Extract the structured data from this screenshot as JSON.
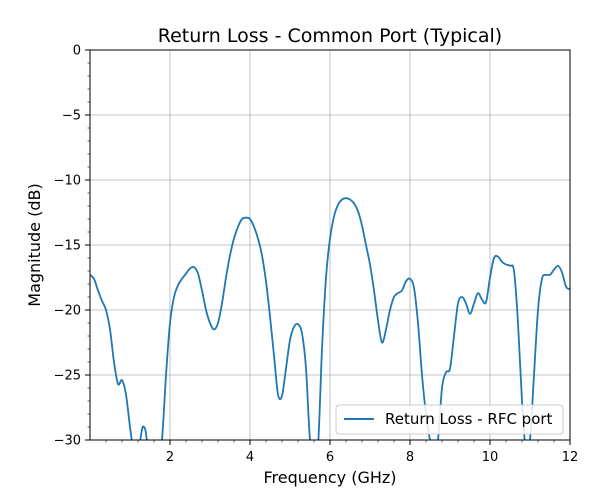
{
  "chart_data": {
    "type": "line",
    "title": "Return Loss - Common Port (Typical)",
    "xlabel": "Frequency (GHz)",
    "ylabel": "Magnitude (dB)",
    "xlim": [
      0,
      12
    ],
    "ylim": [
      -30,
      0
    ],
    "xticks": [
      2,
      4,
      6,
      8,
      10,
      12
    ],
    "yticks": [
      0,
      -5,
      -10,
      -15,
      -20,
      -25,
      -30
    ],
    "xtick_labels": [
      "2",
      "4",
      "6",
      "8",
      "10",
      "12"
    ],
    "ytick_labels": [
      "0",
      "−5",
      "−10",
      "−15",
      "−20",
      "−25",
      "−30"
    ],
    "grid": true,
    "legend_position": "bottom-right",
    "color": "#1f77b4",
    "series": [
      {
        "name": "Return Loss - RFC port",
        "x": [
          0.0,
          0.1,
          0.2,
          0.3,
          0.4,
          0.5,
          0.6,
          0.7,
          0.8,
          0.9,
          1.0,
          1.1,
          1.2,
          1.3,
          1.35,
          1.4,
          1.5,
          1.6,
          1.7,
          1.8,
          1.9,
          2.0,
          2.1,
          2.2,
          2.3,
          2.4,
          2.5,
          2.6,
          2.7,
          2.8,
          2.9,
          3.0,
          3.1,
          3.2,
          3.3,
          3.4,
          3.5,
          3.6,
          3.7,
          3.8,
          3.9,
          4.0,
          4.1,
          4.2,
          4.3,
          4.4,
          4.5,
          4.6,
          4.7,
          4.8,
          4.9,
          5.0,
          5.1,
          5.2,
          5.3,
          5.4,
          5.5,
          5.6,
          5.7,
          5.8,
          5.9,
          6.0,
          6.1,
          6.2,
          6.3,
          6.4,
          6.5,
          6.6,
          6.7,
          6.8,
          6.9,
          7.0,
          7.1,
          7.2,
          7.3,
          7.4,
          7.5,
          7.6,
          7.7,
          7.8,
          7.9,
          8.0,
          8.1,
          8.2,
          8.3,
          8.4,
          8.5,
          8.6,
          8.7,
          8.8,
          8.9,
          9.0,
          9.1,
          9.2,
          9.3,
          9.4,
          9.5,
          9.6,
          9.7,
          9.8,
          9.9,
          10.0,
          10.1,
          10.2,
          10.3,
          10.4,
          10.5,
          10.6,
          10.7,
          10.8,
          10.9,
          11.0,
          11.1,
          11.2,
          11.3,
          11.4,
          11.5,
          11.6,
          11.7,
          11.8,
          11.9,
          12.0
        ],
        "values": [
          -17.3,
          -17.6,
          -18.5,
          -19.3,
          -20.0,
          -21.5,
          -24.0,
          -25.7,
          -25.4,
          -26.5,
          -29.0,
          -31.0,
          -31.0,
          -29.2,
          -29.0,
          -29.5,
          -32.0,
          -33.0,
          -32.0,
          -30.0,
          -25.0,
          -21.0,
          -19.0,
          -18.1,
          -17.6,
          -17.2,
          -16.8,
          -16.7,
          -17.2,
          -18.5,
          -20.0,
          -21.0,
          -21.5,
          -21.0,
          -19.5,
          -17.5,
          -15.8,
          -14.5,
          -13.6,
          -13.0,
          -12.9,
          -13.0,
          -13.6,
          -14.5,
          -15.8,
          -17.8,
          -20.5,
          -23.5,
          -26.5,
          -26.6,
          -24.5,
          -22.3,
          -21.3,
          -21.1,
          -21.8,
          -24.5,
          -30.0,
          -31.0,
          -30.5,
          -23.0,
          -17.5,
          -14.5,
          -12.8,
          -11.9,
          -11.5,
          -11.4,
          -11.5,
          -11.8,
          -12.4,
          -13.5,
          -15.0,
          -16.5,
          -18.5,
          -20.8,
          -22.5,
          -21.5,
          -20.0,
          -19.0,
          -18.7,
          -18.5,
          -17.8,
          -17.6,
          -18.3,
          -21.0,
          -25.0,
          -28.0,
          -30.0,
          -31.0,
          -30.0,
          -26.0,
          -24.8,
          -24.5,
          -22.0,
          -19.5,
          -19.0,
          -19.5,
          -20.3,
          -19.5,
          -18.7,
          -19.2,
          -19.4,
          -17.5,
          -16.0,
          -15.9,
          -16.3,
          -16.5,
          -16.6,
          -17.0,
          -21.0,
          -27.0,
          -31.0,
          -30.0,
          -25.0,
          -20.0,
          -17.6,
          -17.3,
          -17.3,
          -16.9,
          -16.6,
          -17.1,
          -18.2,
          -18.4
        ]
      }
    ]
  }
}
